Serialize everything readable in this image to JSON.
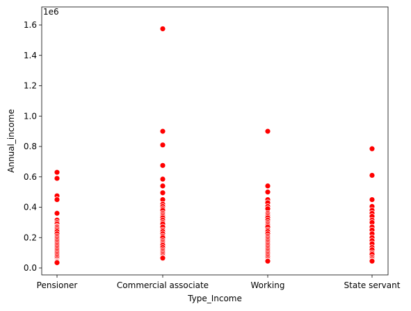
{
  "chart_data": {
    "type": "scatter",
    "title": "",
    "xlabel": "Type_Income",
    "ylabel": "Annual_income",
    "y_offset_label": "1e6",
    "categories": [
      "Pensioner",
      "Commercial associate",
      "Working",
      "State servant"
    ],
    "y_ticks": [
      0.0,
      0.2,
      0.4,
      0.6,
      0.8,
      1.0,
      1.2,
      1.4,
      1.6
    ],
    "y_tick_labels": [
      "0.0",
      "0.2",
      "0.4",
      "0.6",
      "0.8",
      "1.0",
      "1.2",
      "1.4",
      "1.6"
    ],
    "ylim": [
      -0.04,
      1.66
    ],
    "grid": false,
    "marker_color": "#ff0000",
    "series": [
      {
        "category": "Pensioner",
        "values": [
          0.63,
          0.59,
          0.475,
          0.45,
          0.36,
          0.315,
          0.3,
          0.29,
          0.275,
          0.27,
          0.26,
          0.25,
          0.24,
          0.225,
          0.21,
          0.2,
          0.19,
          0.18,
          0.17,
          0.16,
          0.15,
          0.14,
          0.13,
          0.12,
          0.11,
          0.1,
          0.09,
          0.08,
          0.07,
          0.06,
          0.05,
          0.045,
          0.04,
          0.035
        ]
      },
      {
        "category": "Commercial associate",
        "values": [
          1.575,
          0.9,
          0.81,
          0.675,
          0.585,
          0.54,
          0.495,
          0.45,
          0.42,
          0.405,
          0.39,
          0.38,
          0.36,
          0.35,
          0.34,
          0.33,
          0.315,
          0.3,
          0.29,
          0.27,
          0.25,
          0.24,
          0.225,
          0.21,
          0.2,
          0.18,
          0.17,
          0.16,
          0.15,
          0.135,
          0.12,
          0.11,
          0.1,
          0.09,
          0.08,
          0.07,
          0.065
        ]
      },
      {
        "category": "Working",
        "values": [
          0.9,
          0.54,
          0.5,
          0.45,
          0.43,
          0.405,
          0.39,
          0.36,
          0.35,
          0.34,
          0.33,
          0.315,
          0.3,
          0.29,
          0.28,
          0.27,
          0.25,
          0.24,
          0.225,
          0.21,
          0.2,
          0.19,
          0.18,
          0.17,
          0.16,
          0.15,
          0.14,
          0.13,
          0.12,
          0.11,
          0.1,
          0.09,
          0.08,
          0.07,
          0.06,
          0.05,
          0.045
        ]
      },
      {
        "category": "State servant",
        "values": [
          0.785,
          0.61,
          0.45,
          0.405,
          0.38,
          0.36,
          0.34,
          0.315,
          0.3,
          0.27,
          0.25,
          0.225,
          0.2,
          0.18,
          0.16,
          0.135,
          0.12,
          0.1,
          0.09,
          0.07,
          0.06,
          0.05,
          0.045
        ]
      }
    ]
  }
}
